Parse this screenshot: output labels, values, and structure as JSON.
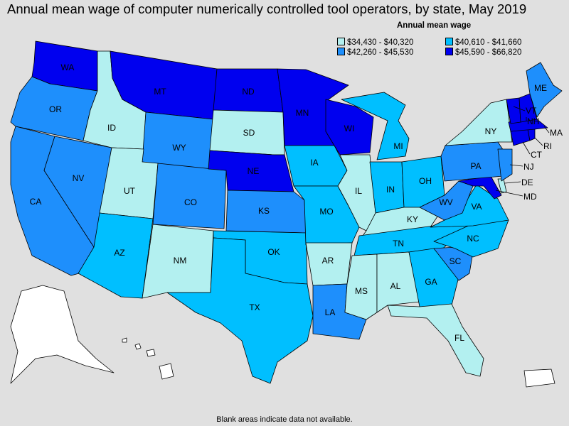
{
  "title": "Annual mean wage of computer numerically controlled tool operators, by state, May 2019",
  "legend": {
    "title": "Annual mean wage",
    "items": [
      {
        "label": "$34,430 - $40,320",
        "color": "#b3f0f0"
      },
      {
        "label": "$40,610 - $41,660",
        "color": "#00bfff"
      },
      {
        "label": "$42,260 - $45,530",
        "color": "#1e8ffc"
      },
      {
        "label": "$45,590 - $66,820",
        "color": "#0000ef"
      }
    ]
  },
  "footnote": "Blank areas indicate data not available.",
  "colors": {
    "background": "#e0e0e0",
    "no_data": "#ffffff"
  },
  "chart_data": {
    "type": "choropleth",
    "region": "United States",
    "categories": [
      "$34,430 - $40,320",
      "$40,610 - $41,660",
      "$42,260 - $45,530",
      "$45,590 - $66,820"
    ],
    "states": {
      "WA": 3,
      "OR": 2,
      "CA": 2,
      "NV": 2,
      "ID": 0,
      "MT": 3,
      "WY": 2,
      "UT": 0,
      "AZ": 1,
      "CO": 2,
      "NM": 0,
      "ND": 3,
      "SD": 0,
      "NE": 3,
      "KS": 2,
      "OK": 1,
      "TX": 1,
      "MN": 3,
      "IA": 1,
      "MO": 1,
      "AR": 0,
      "LA": 2,
      "WI": 3,
      "IL": 0,
      "MI": 1,
      "IN": 1,
      "OH": 1,
      "KY": 0,
      "TN": 1,
      "MS": 0,
      "AL": 0,
      "GA": 1,
      "FL": 0,
      "SC": 2,
      "NC": 1,
      "VA": 1,
      "WV": 2,
      "PA": 2,
      "NY": 0,
      "VT": 3,
      "NH": 3,
      "ME": 2,
      "MA": 3,
      "RI": 3,
      "CT": 3,
      "NJ": 2,
      "DE": 0,
      "MD": 3,
      "AK": null,
      "HI": null,
      "PR": null
    }
  }
}
